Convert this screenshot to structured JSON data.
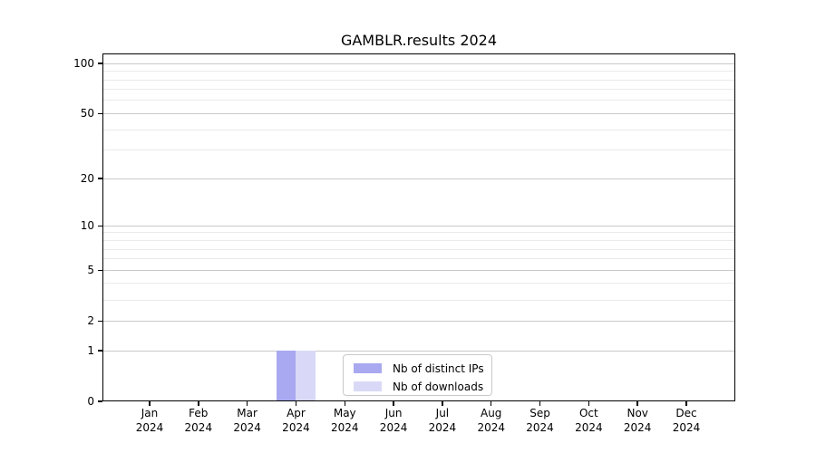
{
  "chart_data": {
    "type": "bar",
    "title": "GAMBLR.results 2024",
    "y_scale": "log1p",
    "ylim": [
      0,
      115
    ],
    "grid": true,
    "legend_position": "lower center",
    "x_tick_labels": [
      [
        "Jan",
        "2024"
      ],
      [
        "Feb",
        "2024"
      ],
      [
        "Mar",
        "2024"
      ],
      [
        "Apr",
        "2024"
      ],
      [
        "May",
        "2024"
      ],
      [
        "Jun",
        "2024"
      ],
      [
        "Jul",
        "2024"
      ],
      [
        "Aug",
        "2024"
      ],
      [
        "Sep",
        "2024"
      ],
      [
        "Oct",
        "2024"
      ],
      [
        "Nov",
        "2024"
      ],
      [
        "Dec",
        "2024"
      ]
    ],
    "y_major_ticks": [
      0,
      1,
      2,
      5,
      10,
      20,
      50,
      100
    ],
    "y_minor_gridlines": [
      3,
      4,
      6,
      7,
      8,
      9,
      30,
      40,
      60,
      70,
      80,
      90
    ],
    "series": [
      {
        "name": "Nb of distinct IPs",
        "color": "#a9a9f1",
        "values": [
          0,
          0,
          0,
          1,
          0,
          0,
          0,
          0,
          0,
          0,
          0,
          0
        ]
      },
      {
        "name": "Nb of downloads",
        "color": "#d9d9f7",
        "values": [
          0,
          0,
          0,
          1,
          0,
          0,
          0,
          0,
          0,
          0,
          0,
          0
        ]
      }
    ]
  },
  "colors": {
    "background": "#ffffff",
    "spine": "#000000",
    "major_grid": "#c9c9c9",
    "minor_grid": "#eaeaea",
    "legend_border": "#c9c9c9",
    "text": "#000000"
  }
}
